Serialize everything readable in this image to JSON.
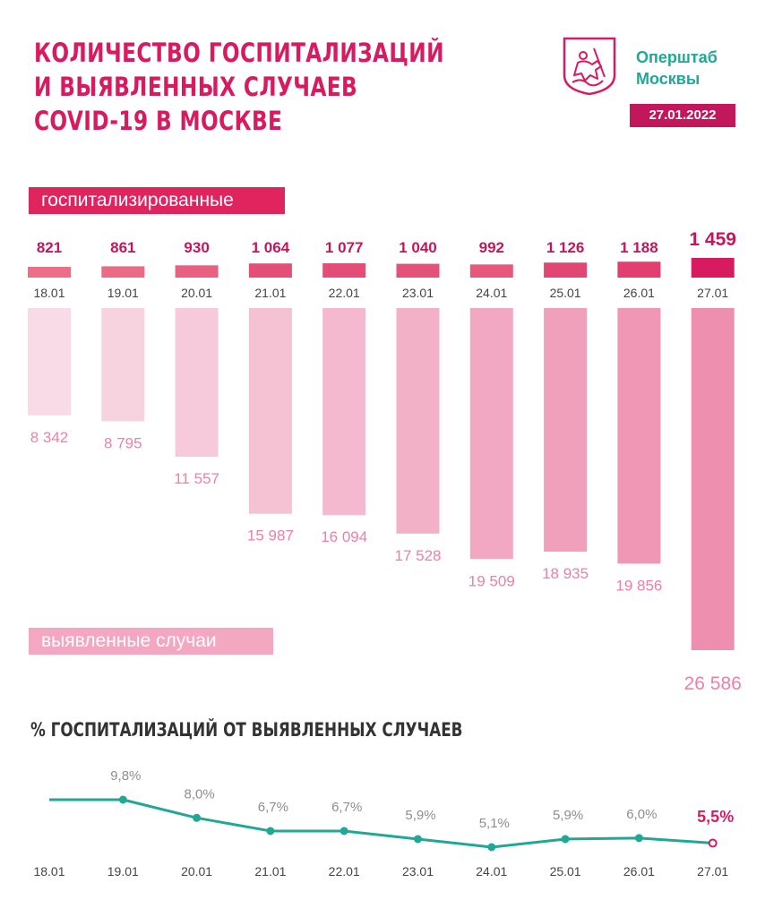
{
  "header": {
    "title_lines": [
      "КОЛИЧЕСТВО ГОСПИТАЛИЗАЦИЙ",
      "И ВЫЯВЛЕННЫХ СЛУЧАЕВ",
      "COVID-19 В МОСКВЕ"
    ],
    "org_lines": [
      "Оперштаб",
      "Москвы"
    ],
    "date": "27.01.2022"
  },
  "labels": {
    "hospitalized": "госпитализированные",
    "cases": "выявленные случаи",
    "percent_title": "% ГОСПИТАЛИЗАЦИЙ ОТ ВЫЯВЛЕННЫХ СЛУЧАЕВ"
  },
  "colors": {
    "accent": "#d81b60",
    "teal": "#21a796",
    "case_bar_light": "#f8dbe6",
    "case_bar_dark": "#ef8fb0"
  },
  "chart_data": [
    {
      "type": "bar",
      "title": "госпитализированные",
      "categories": [
        "18.01",
        "19.01",
        "20.01",
        "21.01",
        "22.01",
        "23.01",
        "24.01",
        "25.01",
        "26.01",
        "27.01"
      ],
      "values": [
        821,
        861,
        930,
        1064,
        1077,
        1040,
        992,
        1126,
        1188,
        1459
      ],
      "value_labels": [
        "821",
        "861",
        "930",
        "1 064",
        "1 077",
        "1 040",
        "992",
        "1 126",
        "1 188",
        "1 459"
      ]
    },
    {
      "type": "bar",
      "title": "выявленные случаи",
      "categories": [
        "18.01",
        "19.01",
        "20.01",
        "21.01",
        "22.01",
        "23.01",
        "24.01",
        "25.01",
        "26.01",
        "27.01"
      ],
      "values": [
        8342,
        8795,
        11557,
        15987,
        16094,
        17528,
        19509,
        18935,
        19856,
        26586
      ],
      "value_labels": [
        "8 342",
        "8 795",
        "11 557",
        "15 987",
        "16 094",
        "17 528",
        "19 509",
        "18 935",
        "19 856",
        "26 586"
      ]
    },
    {
      "type": "line",
      "title": "% ГОСПИТАЛИЗАЦИЙ ОТ ВЫЯВЛЕННЫХ СЛУЧАЕВ",
      "x": [
        "18.01",
        "19.01",
        "20.01",
        "21.01",
        "22.01",
        "23.01",
        "24.01",
        "25.01",
        "26.01",
        "27.01"
      ],
      "y": [
        9.8,
        9.8,
        8.0,
        6.7,
        6.7,
        5.9,
        5.1,
        5.9,
        6.0,
        5.5
      ],
      "point_labels": [
        "",
        "9,8%",
        "8,0%",
        "6,7%",
        "6,7%",
        "5,9%",
        "5,1%",
        "5,9%",
        "6,0%",
        "5,5%"
      ]
    }
  ]
}
